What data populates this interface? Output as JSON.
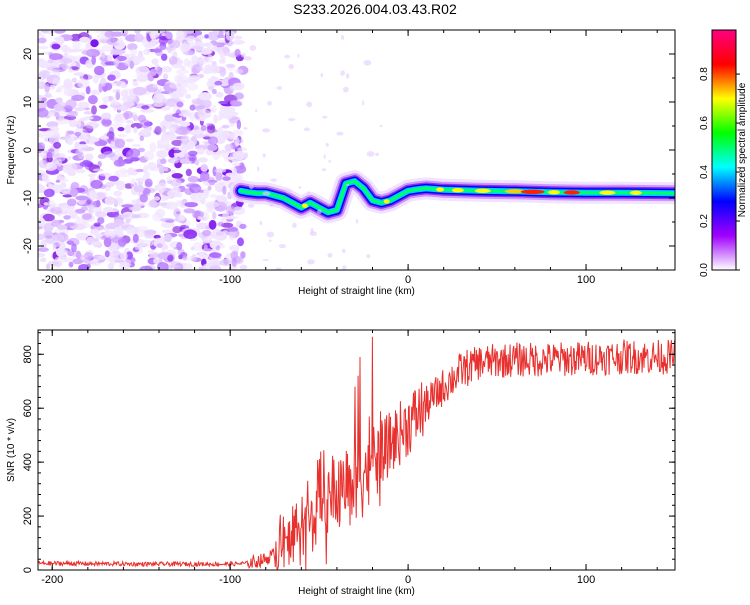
{
  "title": "S233.2026.004.03.43.R02",
  "chart_data": [
    {
      "type": "heatmap",
      "xlabel": "Height of straight line (km)",
      "ylabel": "Frequency (Hz)",
      "xlim": [
        -208,
        150
      ],
      "ylim": [
        -25,
        25
      ],
      "xticks": [
        -200,
        -100,
        0,
        100
      ],
      "xtick_labels": [
        "-200",
        "-100",
        "0",
        "100"
      ],
      "yticks": [
        -20,
        -10,
        0,
        10,
        20
      ],
      "ytick_labels": [
        "-20",
        "-10",
        "0",
        "10",
        "20"
      ],
      "ridge": {
        "x": [
          -94,
          -90,
          -85,
          -80,
          -75,
          -70,
          -65,
          -60,
          -55,
          -50,
          -45,
          -40,
          -35,
          -30,
          -25,
          -20,
          -15,
          -10,
          -5,
          0,
          5,
          10,
          20,
          40,
          60,
          80,
          100,
          120,
          150
        ],
        "y": [
          -8.5,
          -8.8,
          -9.0,
          -9.0,
          -9.5,
          -10.0,
          -11.0,
          -12.0,
          -11.0,
          -12.0,
          -13.0,
          -12.5,
          -7.0,
          -6.5,
          -8.0,
          -10.5,
          -11.0,
          -10.5,
          -9.5,
          -8.5,
          -8.2,
          -8.0,
          -8.3,
          -8.5,
          -8.6,
          -8.8,
          -8.9,
          -8.9,
          -9.0
        ]
      },
      "noise_region": {
        "x_from": -208,
        "x_to": -95
      },
      "colorbar": {
        "label": "Normalized spectral amplitude",
        "range": [
          0,
          0.98
        ],
        "ticks": [
          0.0,
          0.2,
          0.4,
          0.6,
          0.8
        ],
        "tick_labels": [
          "0.0",
          "0.2",
          "0.4",
          "0.6",
          "0.8"
        ],
        "colors": [
          "#ffffff",
          "#a000ff",
          "#0000ff",
          "#00ffff",
          "#00ff00",
          "#ffff00",
          "#ff0000",
          "#ff0080"
        ]
      }
    },
    {
      "type": "line",
      "xlabel": "Height of straight line (km)",
      "ylabel": "SNR (10 * v/v)",
      "xlim": [
        -208,
        150
      ],
      "ylim": [
        0,
        890
      ],
      "xticks": [
        -200,
        -100,
        0,
        100
      ],
      "xtick_labels": [
        "-200",
        "-100",
        "0",
        "100"
      ],
      "yticks": [
        0,
        200,
        400,
        600,
        800
      ],
      "ytick_labels": [
        "0",
        "200",
        "400",
        "600",
        "800"
      ],
      "color": "#e8312e",
      "series": [
        {
          "name": "SNR",
          "x": [
            -208,
            -150,
            -100,
            -90,
            -80,
            -70,
            -60,
            -50,
            -40,
            -30,
            -20,
            -10,
            0,
            10,
            20,
            30,
            40,
            60,
            80,
            100,
            120,
            150
          ],
          "y": [
            25,
            22,
            22,
            25,
            40,
            80,
            160,
            230,
            290,
            340,
            400,
            470,
            540,
            610,
            680,
            740,
            770,
            780,
            780,
            785,
            790,
            790
          ]
        }
      ]
    }
  ]
}
